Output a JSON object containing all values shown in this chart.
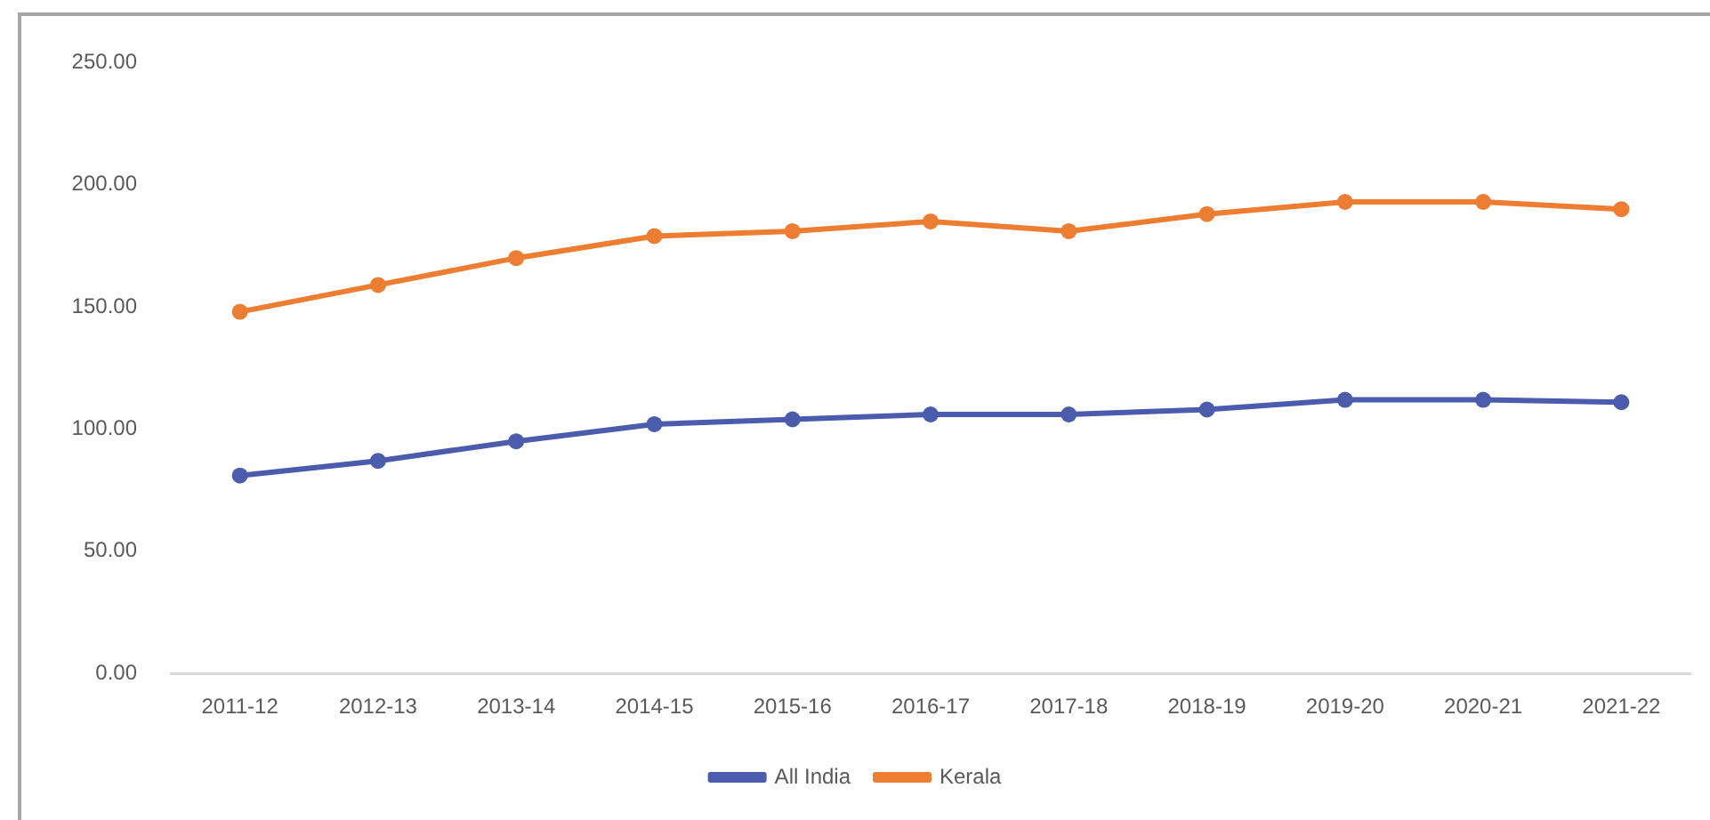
{
  "chart_data": {
    "type": "line",
    "categories": [
      "2011-12",
      "2012-13",
      "2013-14",
      "2014-15",
      "2015-16",
      "2016-17",
      "2017-18",
      "2018-19",
      "2019-20",
      "2020-21",
      "2021-22"
    ],
    "series": [
      {
        "name": "All India",
        "color": "#4b5cad",
        "values": [
          81,
          87,
          95,
          102,
          104,
          106,
          106,
          108,
          112,
          112,
          111
        ]
      },
      {
        "name": "Kerala",
        "color": "#ed7d31",
        "values": [
          148,
          159,
          170,
          179,
          181,
          185,
          181,
          188,
          193,
          193,
          190
        ]
      }
    ],
    "ylim": [
      0,
      250
    ],
    "yticks": [
      {
        "value": 0,
        "label": "0.00"
      },
      {
        "value": 50,
        "label": "50.00"
      },
      {
        "value": 100,
        "label": "100.00"
      },
      {
        "value": 150,
        "label": "150.00"
      },
      {
        "value": 200,
        "label": "200.00"
      },
      {
        "value": 250,
        "label": "250.00"
      }
    ],
    "legend": "bottom",
    "marker": "circle",
    "line_style": "solid"
  }
}
